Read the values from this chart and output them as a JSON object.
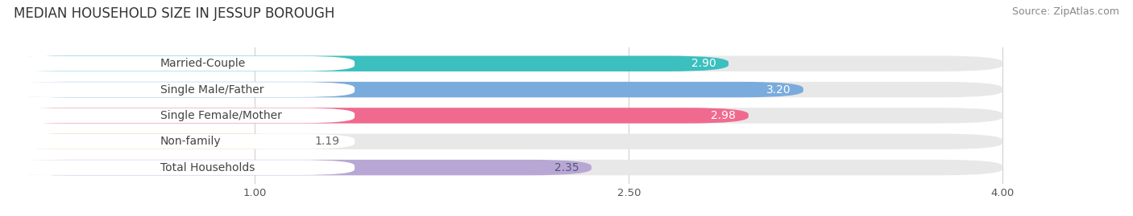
{
  "title": "MEDIAN HOUSEHOLD SIZE IN JESSUP BOROUGH",
  "source": "Source: ZipAtlas.com",
  "categories": [
    "Married-Couple",
    "Single Male/Father",
    "Single Female/Mother",
    "Non-family",
    "Total Households"
  ],
  "values": [
    2.9,
    3.2,
    2.98,
    1.19,
    2.35
  ],
  "bar_colors": [
    "#3bbfbf",
    "#7aabdd",
    "#f06a8f",
    "#f5c899",
    "#b8a7d4"
  ],
  "value_colors": [
    "white",
    "white",
    "white",
    "#888855",
    "#555577"
  ],
  "xlim_data": [
    0.0,
    4.0
  ],
  "xlim_display": [
    0.62,
    4.38
  ],
  "xticks": [
    1.0,
    2.5,
    4.0
  ],
  "xstart": 0.62,
  "title_fontsize": 12,
  "source_fontsize": 9,
  "label_fontsize": 10,
  "value_fontsize": 10,
  "bar_height": 0.6,
  "background_color": "#ffffff",
  "bg_bar_color": "#eeeeee",
  "label_box_color": "#ffffff"
}
